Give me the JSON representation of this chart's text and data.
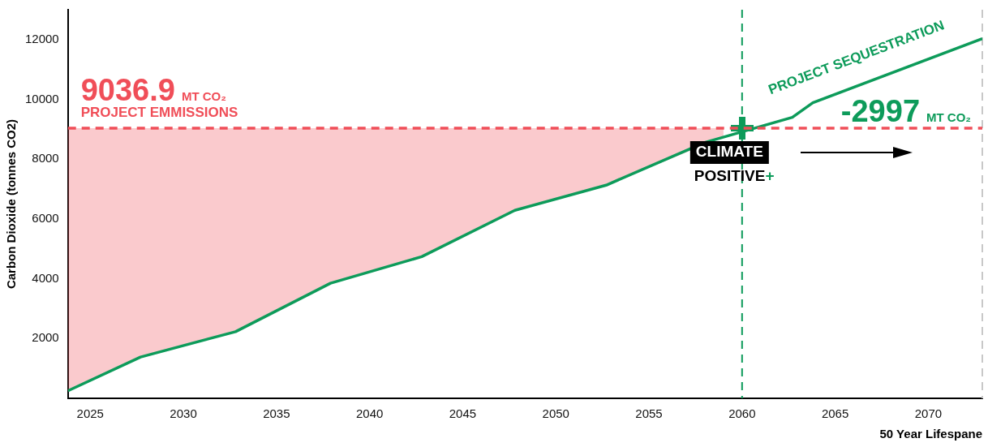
{
  "chart_data": {
    "type": "line",
    "xlabel": "50 Year Lifespane",
    "ylabel": "Carbon Dioxide (tonnes CO2)",
    "xlim": [
      2023.8,
      2072.9
    ],
    "xticks": [
      2025,
      2030,
      2035,
      2040,
      2045,
      2050,
      2055,
      2060,
      2065,
      2070
    ],
    "ylim": [
      0,
      13000
    ],
    "yticks": [
      2000,
      4000,
      6000,
      8000,
      10000,
      12000
    ],
    "series": [
      {
        "name": "PROJECT EMMISSIONS",
        "color": "#f04e58",
        "line_style": "dashed",
        "x": [
          2023.8,
          2027.7,
          2032.8,
          2037.9,
          2042.8,
          2047.8,
          2052.7,
          2058,
          2059,
          2072.9
        ],
        "values": [
          9036.9,
          9036.9,
          9036.9,
          9036.9,
          9036.9,
          9036.9,
          9036.9,
          9036.9,
          9036.9,
          9036.9
        ],
        "lower": [
          250,
          1380,
          2230,
          3850,
          4740,
          6290,
          7130,
          null,
          8740,
          null
        ],
        "upper": [
          9036.9,
          9036.9,
          9036.9,
          9036.9,
          9036.9,
          9036.9,
          9036.9,
          null,
          9036.9,
          null
        ]
      },
      {
        "name": "PROJECT SEQUESTRATION",
        "color": "#0d9b5a",
        "line_style": "solid",
        "x": [
          2023.8,
          2027.7,
          2032.8,
          2037.9,
          2042.8,
          2047.8,
          2052.7,
          2058,
          2062.7,
          2063.8,
          2072.9
        ],
        "values": [
          250,
          1380,
          2230,
          3850,
          4740,
          6290,
          7130,
          8560,
          9400,
          9890,
          12030
        ]
      }
    ],
    "ref_lines": [
      {
        "axis": "x",
        "value": 2060,
        "label": null,
        "color": "#0d9b5a",
        "line_style": "dashed"
      },
      {
        "axis": "x",
        "value": 2072.9,
        "label": null,
        "color": "#c8c8c8",
        "line_style": "dashed"
      }
    ],
    "annotations": [
      {
        "text": "9036.9 MT CO₂",
        "x": 2023.8,
        "y": 9036.9
      },
      {
        "text": "-2997 MT CO₂",
        "x": 2072.9,
        "y": 9036.9
      },
      {
        "text": "CLIMATE POSITIVE+",
        "x": 2060,
        "y": 9036.9
      }
    ],
    "grid": false,
    "legend": false
  }
}
